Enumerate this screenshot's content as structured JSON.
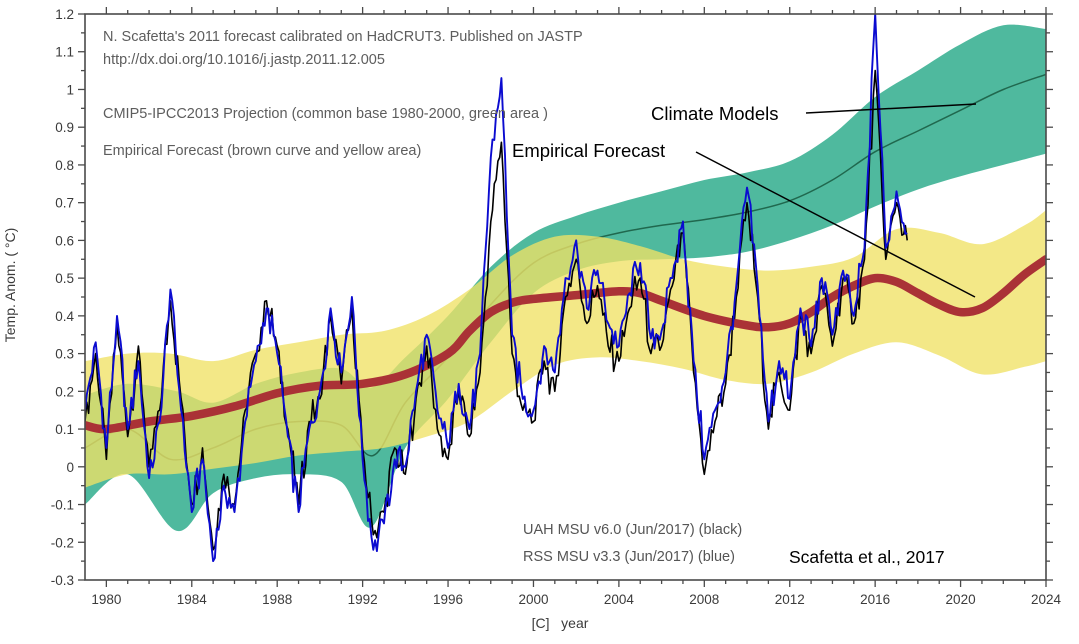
{
  "chart_data": {
    "type": "line",
    "title": "",
    "xlabel": "[C]   year",
    "ylabel": "Temp. Anom. ( °C)",
    "axes": {
      "xlim": [
        1979,
        2024
      ],
      "ylim": [
        -0.3,
        1.2
      ],
      "x_major_step": 4,
      "x_minor_step": 1,
      "y_major_step": 0.1,
      "y_minor_step": 0.05,
      "x_tick_labels": [
        "1980",
        "1984",
        "1988",
        "1992",
        "1996",
        "2000",
        "2004",
        "2008",
        "2012",
        "2016",
        "2020",
        "2024"
      ],
      "y_tick_labels": [
        "-0.3",
        "-0.2",
        "-0.1",
        "0",
        "0.1",
        "0.2",
        "0.3",
        "0.4",
        "0.5",
        "0.6",
        "0.7",
        "0.8",
        "0.9",
        "1",
        "1.1",
        "1.2"
      ],
      "grid": false
    },
    "annotations": {
      "header_line1": "N. Scafetta's 2011 forecast calibrated on HadCRUT3. Published on JASTP",
      "header_line2": "http://dx.doi.org/10.1016/j.jastp.2011.12.005",
      "header_line3": "CMIP5-IPCC2013 Projection (common base 1980-2000, green area )",
      "header_line4": "Empirical Forecast (brown curve and yellow area)",
      "callout_models": "Climate Models",
      "callout_empirical": "Empirical Forecast",
      "legend_uah": "UAH MSU v6.0 (Jun/2017) (black)",
      "legend_rss": "RSS MSU v3.3 (Jun/2017) (blue)",
      "credit": "Scafetta et al., 2017"
    },
    "bands": [
      {
        "name": "CMIP5-IPCC2013 projection range (green area)",
        "color": "#4FB99E",
        "opacity": 1,
        "points": [
          [
            1979,
            -0.1,
            0.19
          ],
          [
            1981,
            -0.02,
            0.22
          ],
          [
            1983.3,
            -0.17,
            0.2
          ],
          [
            1985,
            -0.07,
            0.17
          ],
          [
            1987,
            -0.03,
            0.22
          ],
          [
            1989,
            -0.02,
            0.25
          ],
          [
            1991,
            -0.04,
            0.26
          ],
          [
            1992.4,
            -0.16,
            0.21
          ],
          [
            1994,
            0.05,
            0.29
          ],
          [
            1996,
            0.18,
            0.4
          ],
          [
            1998,
            0.33,
            0.53
          ],
          [
            2000,
            0.46,
            0.62
          ],
          [
            2002,
            0.52,
            0.665
          ],
          [
            2004,
            0.545,
            0.7
          ],
          [
            2006,
            0.55,
            0.73
          ],
          [
            2008,
            0.555,
            0.76
          ],
          [
            2010,
            0.57,
            0.78
          ],
          [
            2012,
            0.6,
            0.81
          ],
          [
            2014,
            0.64,
            0.88
          ],
          [
            2016,
            0.69,
            0.98
          ],
          [
            2018,
            0.735,
            1.05
          ],
          [
            2020,
            0.77,
            1.12
          ],
          [
            2022,
            0.8,
            1.17
          ],
          [
            2024,
            0.83,
            1.16
          ]
        ]
      },
      {
        "name": "Empirical forecast range (yellow area)",
        "color": "#EFE165",
        "opacity": 0.78,
        "points": [
          [
            1979,
            -0.055,
            0.28
          ],
          [
            1981,
            -0.02,
            0.3
          ],
          [
            1983,
            -0.02,
            0.3
          ],
          [
            1985,
            -0.005,
            0.28
          ],
          [
            1987,
            0.01,
            0.31
          ],
          [
            1989,
            0.03,
            0.33
          ],
          [
            1991,
            0.04,
            0.35
          ],
          [
            1993,
            0.05,
            0.36
          ],
          [
            1995,
            0.08,
            0.4
          ],
          [
            1997,
            0.12,
            0.47
          ],
          [
            1999,
            0.2,
            0.56
          ],
          [
            2001,
            0.27,
            0.61
          ],
          [
            2003,
            0.29,
            0.61
          ],
          [
            2005,
            0.28,
            0.585
          ],
          [
            2007,
            0.26,
            0.55
          ],
          [
            2009,
            0.23,
            0.53
          ],
          [
            2011,
            0.22,
            0.52
          ],
          [
            2013,
            0.25,
            0.53
          ],
          [
            2015,
            0.3,
            0.555
          ],
          [
            2017,
            0.33,
            0.63
          ],
          [
            2019,
            0.295,
            0.62
          ],
          [
            2021,
            0.245,
            0.59
          ],
          [
            2023,
            0.265,
            0.64
          ],
          [
            2024,
            0.28,
            0.68
          ]
        ]
      }
    ],
    "series": [
      {
        "name": "CMIP5 climate model mean",
        "style": "smooth",
        "color": "#20684E",
        "width": 1.5,
        "points": [
          [
            1979,
            0.05
          ],
          [
            1981,
            0.1
          ],
          [
            1983,
            0.02
          ],
          [
            1985,
            0.05
          ],
          [
            1987,
            0.1
          ],
          [
            1989,
            0.12
          ],
          [
            1991,
            0.11
          ],
          [
            1992.5,
            0.03
          ],
          [
            1994,
            0.17
          ],
          [
            1996,
            0.29
          ],
          [
            1998,
            0.43
          ],
          [
            2000,
            0.54
          ],
          [
            2002,
            0.59
          ],
          [
            2004,
            0.62
          ],
          [
            2006,
            0.64
          ],
          [
            2008,
            0.655
          ],
          [
            2010,
            0.675
          ],
          [
            2012,
            0.705
          ],
          [
            2014,
            0.76
          ],
          [
            2016,
            0.835
          ],
          [
            2018,
            0.89
          ],
          [
            2020,
            0.945
          ],
          [
            2022,
            1.0
          ],
          [
            2024,
            1.04
          ]
        ]
      },
      {
        "name": "Empirical forecast (brown curve)",
        "style": "smooth",
        "color": "#AA3236",
        "width": 8.5,
        "points": [
          [
            1979,
            0.11
          ],
          [
            1980,
            0.1
          ],
          [
            1982,
            0.12
          ],
          [
            1984,
            0.135
          ],
          [
            1986,
            0.16
          ],
          [
            1988,
            0.195
          ],
          [
            1990,
            0.215
          ],
          [
            1992,
            0.22
          ],
          [
            1994,
            0.245
          ],
          [
            1996,
            0.3
          ],
          [
            1997,
            0.36
          ],
          [
            1998,
            0.41
          ],
          [
            1999,
            0.435
          ],
          [
            2000,
            0.445
          ],
          [
            2002,
            0.455
          ],
          [
            2004,
            0.465
          ],
          [
            2005,
            0.46
          ],
          [
            2006,
            0.44
          ],
          [
            2008,
            0.4
          ],
          [
            2010,
            0.375
          ],
          [
            2011,
            0.37
          ],
          [
            2012,
            0.38
          ],
          [
            2013,
            0.41
          ],
          [
            2014,
            0.45
          ],
          [
            2015,
            0.48
          ],
          [
            2016,
            0.5
          ],
          [
            2017,
            0.49
          ],
          [
            2018,
            0.46
          ],
          [
            2019,
            0.43
          ],
          [
            2020,
            0.41
          ],
          [
            2021,
            0.42
          ],
          [
            2022,
            0.46
          ],
          [
            2023,
            0.51
          ],
          [
            2024,
            0.55
          ]
        ]
      },
      {
        "name": "UAH MSU v6.0 (black)",
        "style": "jagged",
        "color": "#000000",
        "width": 1.6,
        "start": 1979,
        "step": 0.5,
        "values": [
          0.12,
          0.3,
          0.02,
          0.38,
          0.08,
          0.32,
          0.0,
          0.15,
          0.44,
          0.18,
          -0.1,
          0.05,
          -0.22,
          -0.02,
          -0.1,
          0.15,
          0.3,
          0.44,
          0.32,
          0.1,
          -0.1,
          0.12,
          0.18,
          0.4,
          0.22,
          0.42,
          0.05,
          -0.18,
          -0.12,
          0.05,
          -0.02,
          0.18,
          0.32,
          0.1,
          0.02,
          0.2,
          0.08,
          0.25,
          0.65,
          0.86,
          0.3,
          0.15,
          0.12,
          0.28,
          0.2,
          0.45,
          0.55,
          0.38,
          0.48,
          0.32,
          0.28,
          0.42,
          0.5,
          0.3,
          0.32,
          0.48,
          0.62,
          0.25,
          -0.02,
          0.12,
          0.22,
          0.45,
          0.7,
          0.45,
          0.1,
          0.25,
          0.15,
          0.4,
          0.3,
          0.48,
          0.32,
          0.5,
          0.38,
          0.55,
          1.05,
          0.55,
          0.7,
          0.6
        ]
      },
      {
        "name": "RSS MSU v3.3 (blue)",
        "style": "jagged",
        "color": "#0B0BD0",
        "width": 1.9,
        "start": 1979,
        "step": 0.5,
        "values": [
          0.15,
          0.33,
          0.05,
          0.4,
          0.1,
          0.28,
          -0.03,
          0.12,
          0.47,
          0.15,
          -0.12,
          0.02,
          -0.25,
          -0.05,
          -0.12,
          0.12,
          0.28,
          0.42,
          0.3,
          0.08,
          -0.12,
          0.1,
          0.2,
          0.42,
          0.25,
          0.45,
          0.02,
          -0.22,
          -0.15,
          0.02,
          0.0,
          0.2,
          0.35,
          0.15,
          0.05,
          0.22,
          0.1,
          0.3,
          0.82,
          1.03,
          0.35,
          0.18,
          0.15,
          0.32,
          0.25,
          0.5,
          0.6,
          0.42,
          0.52,
          0.38,
          0.32,
          0.46,
          0.54,
          0.34,
          0.36,
          0.5,
          0.65,
          0.28,
          0.02,
          0.15,
          0.25,
          0.48,
          0.74,
          0.48,
          0.12,
          0.28,
          0.18,
          0.42,
          0.32,
          0.5,
          0.35,
          0.52,
          0.4,
          0.58,
          1.2,
          0.58,
          0.73,
          0.62
        ]
      }
    ],
    "colors": {
      "green_band": "#4FB99E",
      "yellow_band": "#EFE165",
      "brown_curve": "#AA3236",
      "model_mean_line": "#20684E",
      "uah_line": "#000000",
      "rss_line": "#0B0BD0",
      "frame": "#4a4a4a"
    }
  }
}
